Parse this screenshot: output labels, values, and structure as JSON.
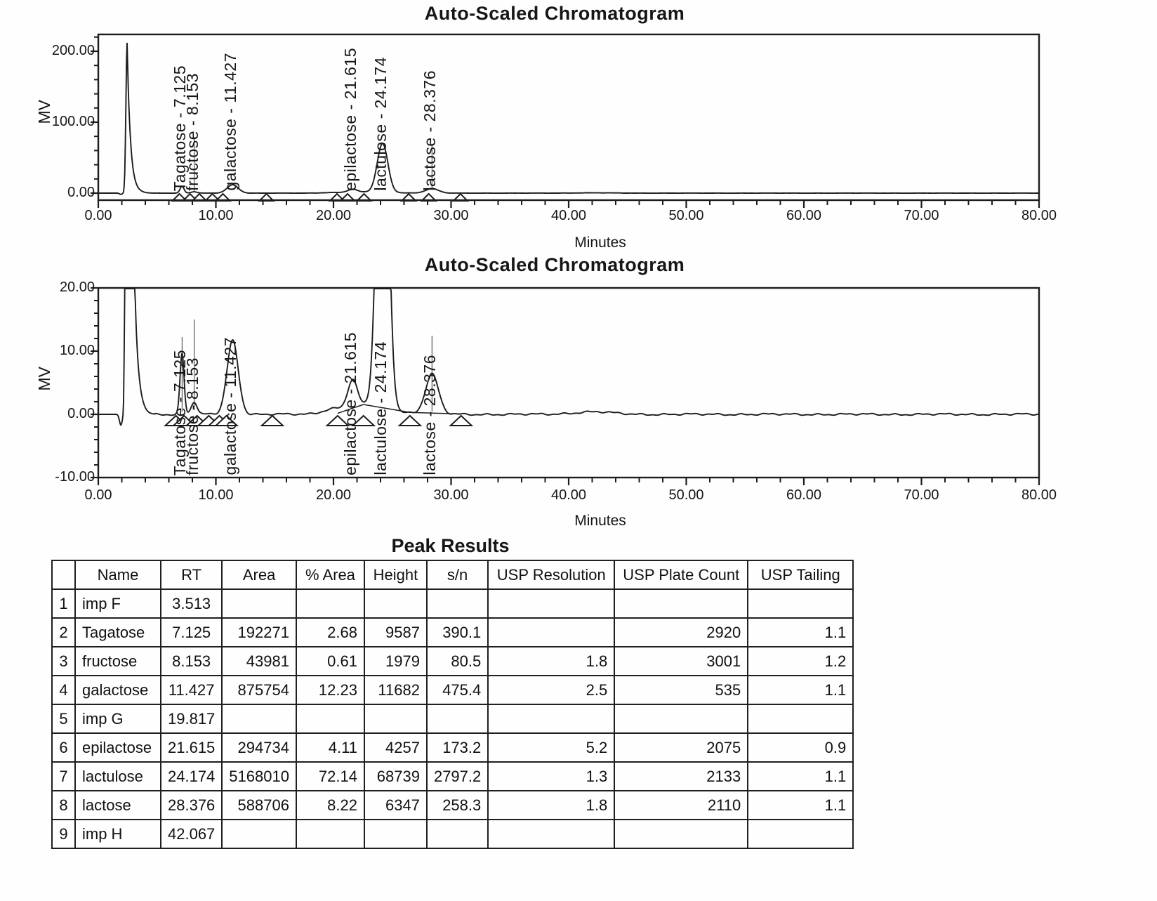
{
  "charts": [
    {
      "title": "Auto-Scaled Chromatogram",
      "y_axis_label": "MV",
      "x_axis_label": "Minutes",
      "y_ticks": [
        {
          "v": 200,
          "label": "200.00"
        },
        {
          "v": 100,
          "label": "100.00"
        },
        {
          "v": 0,
          "label": "0.00"
        }
      ],
      "x_ticks": [
        {
          "v": 0,
          "label": "0.00"
        },
        {
          "v": 10,
          "label": "10.00"
        },
        {
          "v": 20,
          "label": "20.00"
        },
        {
          "v": 30,
          "label": "30.00"
        },
        {
          "v": 40,
          "label": "40.00"
        },
        {
          "v": 50,
          "label": "50.00"
        },
        {
          "v": 60,
          "label": "60.00"
        },
        {
          "v": 70,
          "label": "70.00"
        },
        {
          "v": 80,
          "label": "80.00"
        }
      ],
      "peak_annotations": [
        {
          "label": "Tagatose - 7.125",
          "rt": 7.125
        },
        {
          "label": "fructose - 8.153",
          "rt": 8.153
        },
        {
          "label": "galactose - 11.427",
          "rt": 11.427
        },
        {
          "label": "epilactose - 21.615",
          "rt": 21.615
        },
        {
          "label": "lactulose - 24.174",
          "rt": 24.174
        },
        {
          "label": "lactose - 28.376",
          "rt": 28.376
        }
      ]
    },
    {
      "title": "Auto-Scaled Chromatogram",
      "y_axis_label": "MV",
      "x_axis_label": "Minutes",
      "y_ticks": [
        {
          "v": 20,
          "label": "20.00"
        },
        {
          "v": 10,
          "label": "10.00"
        },
        {
          "v": 0,
          "label": "0.00"
        },
        {
          "v": -10,
          "label": "-10.00"
        }
      ],
      "x_ticks": [
        {
          "v": 0,
          "label": "0.00"
        },
        {
          "v": 10,
          "label": "10.00"
        },
        {
          "v": 20,
          "label": "20.00"
        },
        {
          "v": 30,
          "label": "30.00"
        },
        {
          "v": 40,
          "label": "40.00"
        },
        {
          "v": 50,
          "label": "50.00"
        },
        {
          "v": 60,
          "label": "60.00"
        },
        {
          "v": 70,
          "label": "70.00"
        },
        {
          "v": 80,
          "label": "80.00"
        }
      ],
      "peak_annotations": [
        {
          "label": "Tagatose - 7.125",
          "rt": 7.125
        },
        {
          "label": "fructose - 8.153",
          "rt": 8.153
        },
        {
          "label": "galactose - 11.427",
          "rt": 11.427
        },
        {
          "label": "epilactose - 21.615",
          "rt": 21.615
        },
        {
          "label": "lactulose - 24.174",
          "rt": 24.174
        },
        {
          "label": "lactose - 28.376",
          "rt": 28.376
        }
      ]
    }
  ],
  "table": {
    "title": "Peak Results",
    "columns": [
      "",
      "Name",
      "RT",
      "Area",
      "% Area",
      "Height",
      "s/n",
      "USP Resolution",
      "USP Plate Count",
      "USP Tailing"
    ],
    "rows": [
      [
        "1",
        "imp F",
        "3.513",
        "",
        "",
        "",
        "",
        "",
        "",
        ""
      ],
      [
        "2",
        "Tagatose",
        "7.125",
        "192271",
        "2.68",
        "9587",
        "390.1",
        "",
        "2920",
        "1.1"
      ],
      [
        "3",
        "fructose",
        "8.153",
        "43981",
        "0.61",
        "1979",
        "80.5",
        "1.8",
        "3001",
        "1.2"
      ],
      [
        "4",
        "galactose",
        "11.427",
        "875754",
        "12.23",
        "11682",
        "475.4",
        "2.5",
        "535",
        "1.1"
      ],
      [
        "5",
        "imp G",
        "19.817",
        "",
        "",
        "",
        "",
        "",
        "",
        ""
      ],
      [
        "6",
        "epilactose",
        "21.615",
        "294734",
        "4.11",
        "4257",
        "173.2",
        "5.2",
        "2075",
        "0.9"
      ],
      [
        "7",
        "lactulose",
        "24.174",
        "5168010",
        "72.14",
        "68739",
        "2797.2",
        "1.3",
        "2133",
        "1.1"
      ],
      [
        "8",
        "lactose",
        "28.376",
        "588706",
        "8.22",
        "6347",
        "258.3",
        "1.8",
        "2110",
        "1.1"
      ],
      [
        "9",
        "imp H",
        "42.067",
        "",
        "",
        "",
        "",
        "",
        "",
        ""
      ]
    ]
  },
  "chart_data": [
    {
      "type": "line",
      "title": "Auto-Scaled Chromatogram",
      "xlabel": "Minutes",
      "ylabel": "MV",
      "xlim": [
        0,
        80
      ],
      "ylim": [
        -10,
        224
      ],
      "x_major_tick_interval": 10,
      "x_minor_tick_interval": 2,
      "y_major_tick_interval": 100,
      "y_minor_tick_interval": 20,
      "grid": false,
      "legend": "none",
      "peaks": [
        {
          "name": "solvent front",
          "rt_min": 2.45,
          "height_mv": 212,
          "width_min": 0.1,
          "tail": true
        },
        {
          "name": "pre-dip",
          "rt_min": 1.92,
          "height_mv": -1.7,
          "width_min": 0.12
        },
        {
          "name": "imp F",
          "rt_min": 3.513,
          "height_mv": 0.6,
          "width_min": 0.35
        },
        {
          "name": "Tagatose",
          "rt_min": 7.125,
          "height_mv": 9.587,
          "width_min": 0.17
        },
        {
          "name": "fructose",
          "rt_min": 8.153,
          "height_mv": 1.979,
          "width_min": 0.24
        },
        {
          "name": "galactose",
          "rt_min": 11.427,
          "height_mv": 11.682,
          "width_min": 0.48
        },
        {
          "name": "imp G",
          "rt_min": 19.817,
          "height_mv": 0.5,
          "width_min": 0.8
        },
        {
          "name": "baseline hump",
          "rt_min": 22.9,
          "height_mv": 1.5,
          "width_min": 1.9
        },
        {
          "name": "epilactose",
          "rt_min": 21.615,
          "height_mv": 4.257,
          "width_min": 0.4
        },
        {
          "name": "lactulose",
          "rt_min": 24.174,
          "height_mv": 68.739,
          "width_min": 0.45
        },
        {
          "name": "lactose",
          "rt_min": 28.376,
          "height_mv": 6.347,
          "width_min": 0.55
        },
        {
          "name": "imp H",
          "rt_min": 42.067,
          "height_mv": 0.4,
          "width_min": 1.6
        }
      ],
      "baseline_marks_min": [
        6.9,
        7.8,
        8.6,
        9.7,
        10.6,
        14.3,
        20.3,
        21.2,
        22.6,
        26.4,
        28.1,
        30.8
      ]
    },
    {
      "type": "line",
      "title": "Auto-Scaled Chromatogram",
      "xlabel": "Minutes",
      "ylabel": "MV",
      "xlim": [
        0,
        80
      ],
      "ylim": [
        -10,
        20
      ],
      "x_major_tick_interval": 10,
      "x_minor_tick_interval": 2,
      "y_major_tick_interval": 10,
      "y_minor_tick_interval": 2,
      "grid": false,
      "legend": "none",
      "clipped_at_top": true,
      "series_note": "same signal as first chromatogram, y-axis zoomed; solvent front and lactulose peaks clip at 20 MV",
      "baseline_marks_min": [
        6.6,
        7.3,
        8.4,
        9.4,
        10.3,
        10.9,
        14.8,
        20.35,
        22.55,
        26.5,
        30.85
      ],
      "integration_baseline": [
        [
          20.35,
          0.15
        ],
        [
          22.55,
          1.55
        ],
        [
          26.5,
          0.3
        ],
        [
          30.85,
          0.05
        ]
      ]
    },
    {
      "type": "table",
      "title": "Peak Results",
      "data_ref": "table"
    }
  ]
}
